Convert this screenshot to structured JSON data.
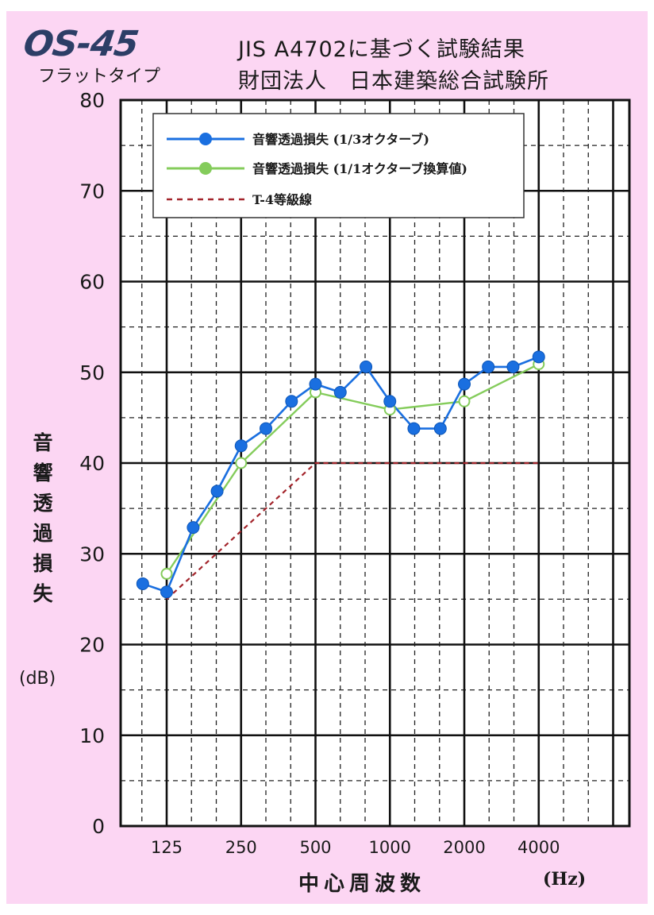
{
  "header": {
    "logo": "OS-45",
    "subtitle": "フラットタイプ",
    "title_line1": "JIS A4702に基づく試験結果",
    "title_line2": "財団法人　日本建築総合試験所"
  },
  "colors": {
    "background": "#fcd6f3",
    "blue": "#1a6fe0",
    "green": "#84cc5b",
    "red": "#a3242b"
  },
  "chart_data": {
    "type": "line",
    "ylabel": "音響透過損失",
    "yunit": "(dB)",
    "xlabel": "中心周波数",
    "xunit": "(Hz)",
    "ylim": [
      0,
      80
    ],
    "yticks": [
      "0",
      "10",
      "20",
      "30",
      "40",
      "50",
      "60",
      "70",
      "80"
    ],
    "xticks": [
      "125",
      "250",
      "500",
      "1000",
      "2000",
      "4000"
    ],
    "grid": true,
    "legend_position": "top-left",
    "series": [
      {
        "name": "音響透過損失 (1/3オクターブ)",
        "color": "#1a6fe0",
        "marker": "filled-circle",
        "x": [
          "100",
          "125",
          "160",
          "200",
          "250",
          "315",
          "400",
          "500",
          "630",
          "800",
          "1000",
          "1250",
          "1600",
          "2000",
          "2500",
          "3150",
          "4000"
        ],
        "values": [
          26.7,
          25.8,
          32.9,
          36.9,
          41.9,
          43.8,
          46.8,
          48.7,
          47.8,
          50.6,
          46.8,
          43.8,
          43.8,
          48.7,
          50.6,
          50.6,
          51.7
        ]
      },
      {
        "name": "音響透過損失 (1/1オクターブ換算値)",
        "color": "#84cc5b",
        "marker": "open-circle",
        "x": [
          "125",
          "250",
          "500",
          "1000",
          "2000",
          "4000"
        ],
        "values": [
          27.8,
          40.0,
          47.8,
          45.9,
          46.8,
          50.9
        ]
      },
      {
        "name": "T-4等級線",
        "color": "#a3242b",
        "style": "dashed",
        "x": [
          "125",
          "250",
          "500",
          "1000",
          "2000",
          "4000"
        ],
        "values": [
          25,
          32.5,
          40,
          40,
          40,
          40
        ]
      }
    ]
  }
}
